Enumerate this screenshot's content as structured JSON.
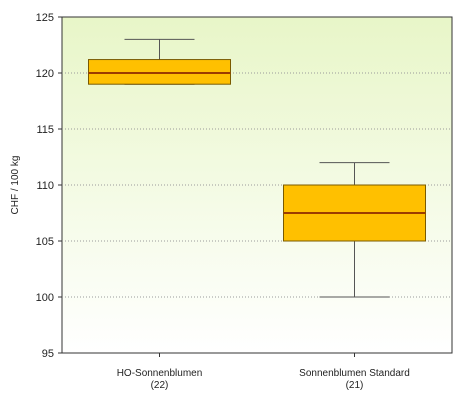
{
  "chart_data": {
    "type": "box",
    "ylabel": "CHF / 100 kg",
    "ylim": [
      95,
      125
    ],
    "yticks": [
      "95",
      "100",
      "105",
      "110",
      "115",
      "120",
      "125"
    ],
    "grid": "horizontal dotted",
    "categories": [
      {
        "name": "HO-Sonnenblumen",
        "n": "(22)",
        "whisker_low": 119,
        "q1": 119,
        "median": 120,
        "q3": 121.2,
        "whisker_high": 123
      },
      {
        "name": "Sonnenblumen Standard",
        "n": "(21)",
        "whisker_low": 100,
        "q1": 105,
        "median": 107.5,
        "q3": 110,
        "whisker_high": 112
      }
    ]
  },
  "colors": {
    "box_fill": "#ffc000",
    "box_stroke": "#7a5a00",
    "median": "#9c3c00",
    "whisker": "#555555",
    "grid": "#9a9a9a",
    "bg_top": "#e8f6c8",
    "bg_bottom": "#ffffff"
  }
}
